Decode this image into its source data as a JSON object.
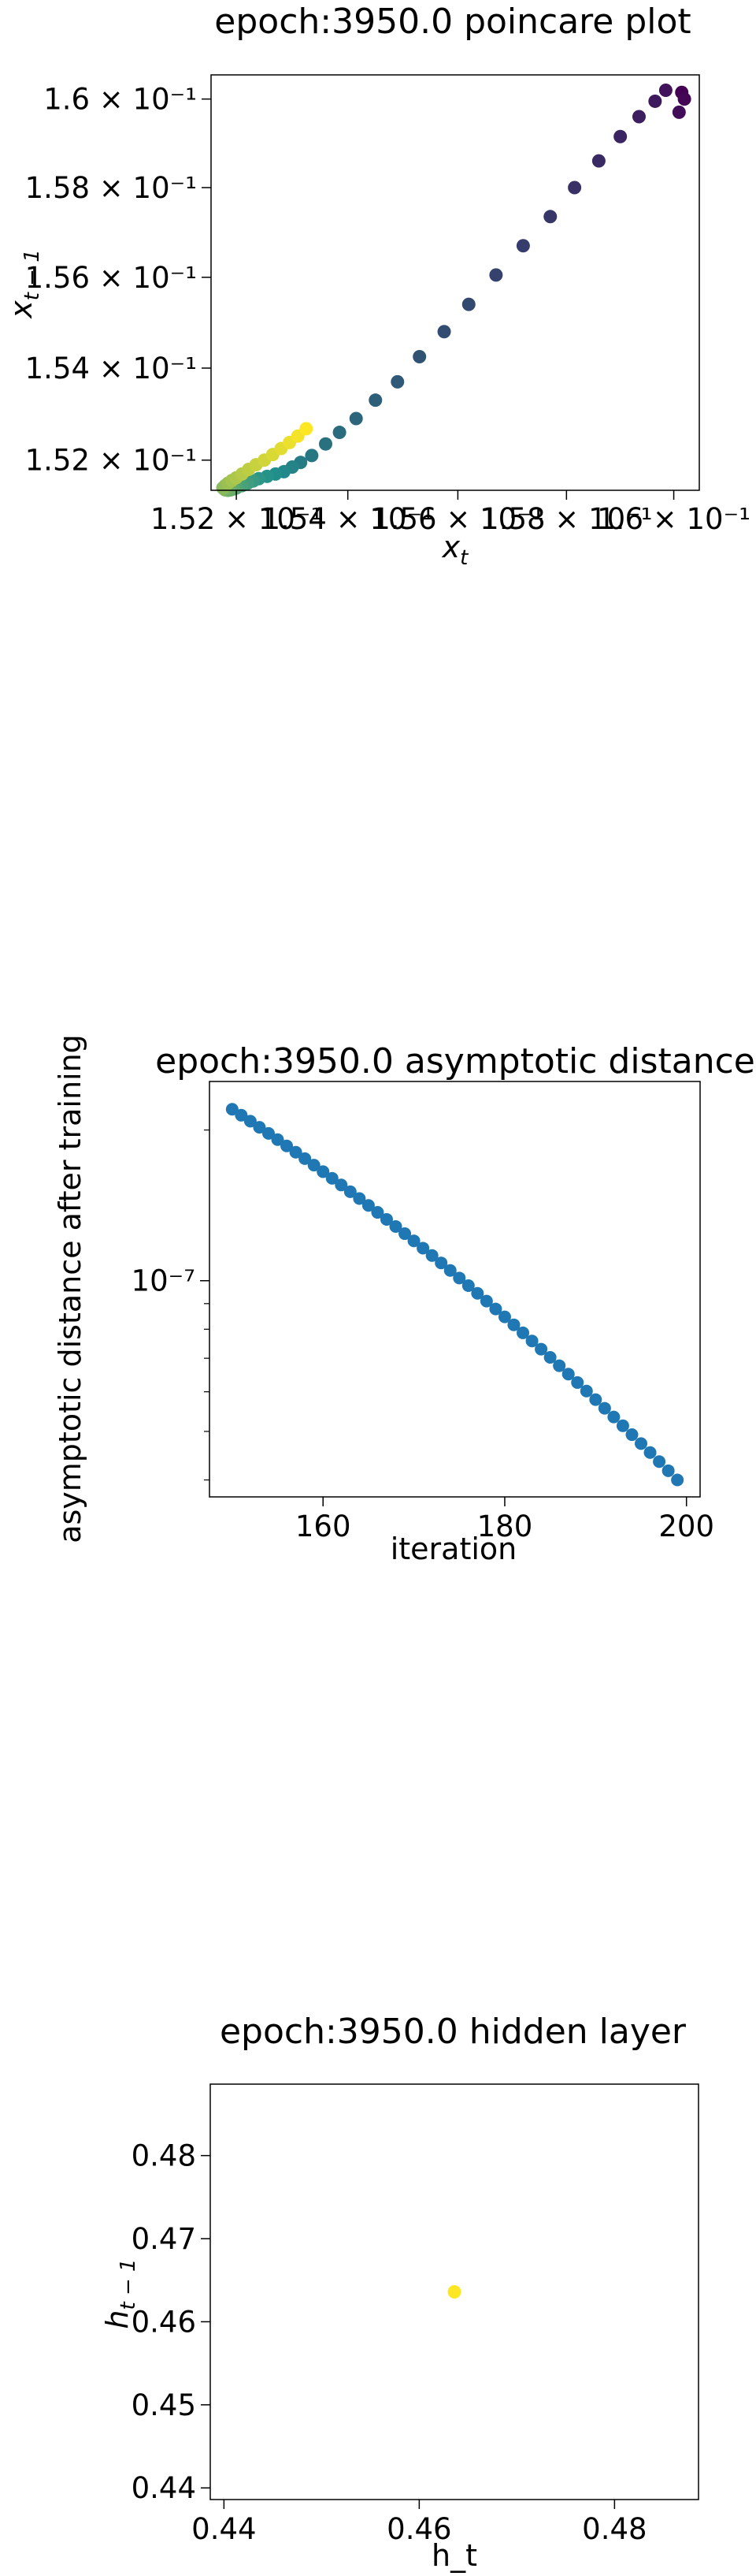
{
  "chart_data": [
    {
      "type": "scatter",
      "title": "epoch:3950.0 poincare plot",
      "xlabel": "x_t",
      "ylabel": "x_{t-1}",
      "xscale": "log",
      "yscale": "log",
      "xlim": [
        0.15155,
        0.16048
      ],
      "ylim": [
        0.15135,
        0.16055
      ],
      "xticks": [
        {
          "value": 0.152,
          "label": "1.52 × 10⁻¹"
        },
        {
          "value": 0.154,
          "label": "1.54 × 10⁻¹"
        },
        {
          "value": 0.156,
          "label": "1.56 × 10⁻¹"
        },
        {
          "value": 0.158,
          "label": "1.58 × 10⁻¹"
        },
        {
          "value": 0.16,
          "label": "1.6 × 10⁻¹"
        }
      ],
      "yticks": [
        {
          "value": 0.152,
          "label": "1.52 × 10⁻¹"
        },
        {
          "value": 0.154,
          "label": "1.54 × 10⁻¹"
        },
        {
          "value": 0.156,
          "label": "1.56 × 10⁻¹"
        },
        {
          "value": 0.158,
          "label": "1.58 × 10⁻¹"
        },
        {
          "value": 0.16,
          "label": "1.6 × 10⁻¹"
        }
      ],
      "colormap": "viridis",
      "colors": {
        "start": "#440154",
        "mid": "#21918c",
        "end": "#fde725"
      },
      "points": [
        [
          0.16015,
          0.16015
        ],
        [
          0.1602,
          0.16
        ],
        [
          0.1601,
          0.1597
        ],
        [
          0.15985,
          0.1602
        ],
        [
          0.15965,
          0.15995
        ],
        [
          0.15935,
          0.1596
        ],
        [
          0.159,
          0.15915
        ],
        [
          0.1586,
          0.1586
        ],
        [
          0.15815,
          0.158
        ],
        [
          0.1577,
          0.15735
        ],
        [
          0.1572,
          0.1567
        ],
        [
          0.1567,
          0.15605
        ],
        [
          0.1562,
          0.1554
        ],
        [
          0.15575,
          0.1548
        ],
        [
          0.1553,
          0.15425
        ],
        [
          0.1549,
          0.1537
        ],
        [
          0.1545,
          0.1533
        ],
        [
          0.15415,
          0.1529
        ],
        [
          0.15385,
          0.1526
        ],
        [
          0.1536,
          0.15235
        ],
        [
          0.15335,
          0.1521
        ],
        [
          0.15315,
          0.15195
        ],
        [
          0.153,
          0.15185
        ],
        [
          0.15285,
          0.15175
        ],
        [
          0.1527,
          0.1517
        ],
        [
          0.15255,
          0.15165
        ],
        [
          0.1524,
          0.1516
        ],
        [
          0.1523,
          0.15155
        ],
        [
          0.1522,
          0.1515
        ],
        [
          0.1521,
          0.15145
        ],
        [
          0.152,
          0.1514
        ],
        [
          0.15195,
          0.15138
        ],
        [
          0.1519,
          0.15136
        ],
        [
          0.15185,
          0.15135
        ],
        [
          0.1518,
          0.15136
        ],
        [
          0.15178,
          0.15138
        ],
        [
          0.15176,
          0.1514
        ],
        [
          0.1518,
          0.15145
        ],
        [
          0.15185,
          0.1515
        ],
        [
          0.15192,
          0.15156
        ],
        [
          0.152,
          0.15162
        ],
        [
          0.1521,
          0.1517
        ],
        [
          0.15222,
          0.1518
        ],
        [
          0.15235,
          0.1519
        ],
        [
          0.1525,
          0.152
        ],
        [
          0.15265,
          0.15212
        ],
        [
          0.1528,
          0.15225
        ],
        [
          0.15295,
          0.15238
        ],
        [
          0.1531,
          0.15252
        ],
        [
          0.15325,
          0.15268
        ]
      ]
    },
    {
      "type": "scatter",
      "title": "epoch:3950.0 asymptotic distance",
      "xlabel": "iteration",
      "ylabel": "asymptotic distance after training",
      "yscale": "log",
      "xlim": [
        147.5,
        201.5
      ],
      "ylim": [
        3.7e-08,
        2.5e-07
      ],
      "xticks": [
        {
          "value": 160,
          "label": "160"
        },
        {
          "value": 180,
          "label": "180"
        },
        {
          "value": 200,
          "label": "200"
        }
      ],
      "yticks": [
        {
          "value": 1e-07,
          "label": "10⁻⁷"
        }
      ],
      "color": "#1f77b4",
      "x_start": 150,
      "x_end": 199,
      "y_start": 2.2e-07,
      "y_end": 4e-08
    },
    {
      "type": "scatter",
      "title": "epoch:3950.0 hidden layer",
      "xlabel": "h_t",
      "ylabel": "h_{t-1}",
      "xlim": [
        0.4386,
        0.4886
      ],
      "ylim": [
        0.4386,
        0.4886
      ],
      "xticks": [
        {
          "value": 0.44,
          "label": "0.44"
        },
        {
          "value": 0.46,
          "label": "0.46"
        },
        {
          "value": 0.48,
          "label": "0.48"
        }
      ],
      "yticks": [
        {
          "value": 0.44,
          "label": "0.44"
        },
        {
          "value": 0.45,
          "label": "0.45"
        },
        {
          "value": 0.46,
          "label": "0.46"
        },
        {
          "value": 0.47,
          "label": "0.47"
        },
        {
          "value": 0.48,
          "label": "0.48"
        }
      ],
      "color": "#fde725",
      "points": [
        [
          0.4636,
          0.4636
        ]
      ]
    }
  ]
}
